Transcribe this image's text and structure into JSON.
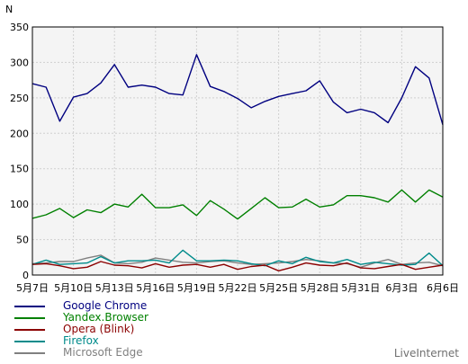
{
  "chart_data": {
    "type": "line",
    "ylabel": "N",
    "ylim": [
      0,
      350
    ],
    "yticks": [
      0,
      50,
      100,
      150,
      200,
      250,
      300,
      350
    ],
    "grid": true,
    "legend_position": "bottom-left",
    "x_tick_labels": [
      "5月7日",
      "5月10日",
      "5月13日",
      "5月16日",
      "5月19日",
      "5月22日",
      "5月25日",
      "5月28日",
      "5月31日",
      "6月3日",
      "6月6日"
    ],
    "x_tick_every": 3,
    "series": [
      {
        "name": "Google Chrome",
        "color": "#000080",
        "values": [
          270,
          265,
          217,
          251,
          256,
          271,
          297,
          265,
          268,
          265,
          256,
          254,
          311,
          266,
          259,
          249,
          236,
          245,
          252,
          256,
          260,
          274,
          244,
          229,
          234,
          229,
          215,
          250,
          294,
          278,
          212
        ]
      },
      {
        "name": "Yandex.Browser",
        "color": "#008000",
        "values": [
          80,
          85,
          94,
          81,
          92,
          88,
          100,
          96,
          114,
          95,
          95,
          99,
          84,
          105,
          93,
          79,
          94,
          109,
          95,
          96,
          107,
          96,
          99,
          112,
          112,
          109,
          103,
          120,
          103,
          120,
          110
        ]
      },
      {
        "name": "Opera (Blink)",
        "color": "#8b0000",
        "values": [
          15,
          16,
          13,
          9,
          11,
          19,
          14,
          13,
          10,
          16,
          11,
          14,
          15,
          11,
          15,
          8,
          12,
          14,
          6,
          11,
          17,
          14,
          13,
          17,
          10,
          9,
          12,
          15,
          8,
          11,
          14
        ]
      },
      {
        "name": "Firefox",
        "color": "#008b8b",
        "values": [
          15,
          21,
          15,
          16,
          17,
          26,
          17,
          20,
          20,
          21,
          17,
          35,
          20,
          20,
          21,
          20,
          16,
          13,
          20,
          16,
          25,
          19,
          17,
          22,
          15,
          18,
          16,
          14,
          15,
          31,
          13
        ]
      },
      {
        "name": "Microsoft Edge",
        "color": "#808080",
        "values": [
          16,
          17,
          19,
          19,
          24,
          28,
          17,
          16,
          18,
          24,
          21,
          18,
          17,
          19,
          20,
          17,
          15,
          16,
          17,
          19,
          22,
          20,
          17,
          16,
          11,
          17,
          22,
          15,
          17,
          18,
          13
        ]
      }
    ]
  },
  "brand": "LiveInternet"
}
